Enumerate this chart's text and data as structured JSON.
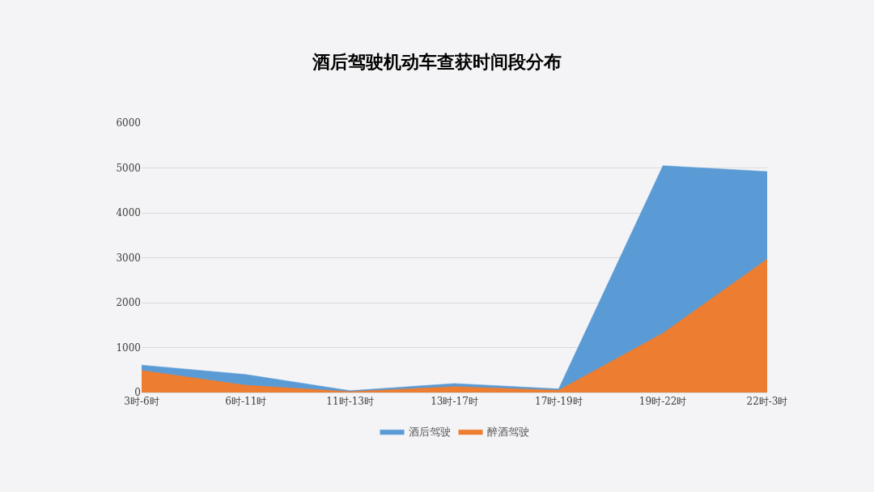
{
  "chart_data": {
    "type": "area",
    "title": "酒后驾驶机动车查获时间段分布",
    "categories": [
      "3时-6时",
      "6时-11时",
      "11时-13时",
      "13时-17时",
      "17时-19时",
      "19时-22时",
      "22时-3时"
    ],
    "series": [
      {
        "name": "酒后驾驶",
        "color": "#5b9bd5",
        "values": [
          610,
          400,
          40,
          200,
          80,
          5050,
          4920
        ]
      },
      {
        "name": "醉酒驾驶",
        "color": "#ed7d31",
        "values": [
          490,
          160,
          20,
          130,
          50,
          1320,
          2970
        ]
      }
    ],
    "ylim": [
      0,
      6000
    ],
    "yticks": [
      0,
      1000,
      2000,
      3000,
      4000,
      5000,
      6000
    ],
    "grid": "y",
    "legend": "bottom"
  }
}
